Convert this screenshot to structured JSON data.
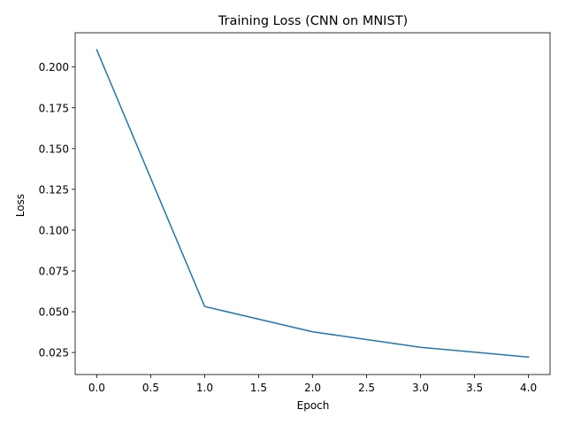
{
  "chart_data": {
    "type": "line",
    "title": "Training Loss (CNN on MNIST)",
    "xlabel": "Epoch",
    "ylabel": "Loss",
    "xlim": [
      -0.2,
      4.2
    ],
    "ylim": [
      0.0115,
      0.221
    ],
    "xticks": [
      0.0,
      0.5,
      1.0,
      1.5,
      2.0,
      2.5,
      3.0,
      3.5,
      4.0
    ],
    "xtick_labels": [
      "0.0",
      "0.5",
      "1.0",
      "1.5",
      "2.0",
      "2.5",
      "3.0",
      "3.5",
      "4.0"
    ],
    "yticks": [
      0.025,
      0.05,
      0.075,
      0.1,
      0.125,
      0.15,
      0.175,
      0.2
    ],
    "ytick_labels": [
      "0.025",
      "0.050",
      "0.075",
      "0.100",
      "0.125",
      "0.150",
      "0.175",
      "0.200"
    ],
    "grid": false,
    "series": [
      {
        "x": [
          0,
          1,
          2,
          3,
          4
        ],
        "values": [
          0.2105,
          0.0532,
          0.0377,
          0.0282,
          0.0222
        ],
        "color": "#1f77b4"
      }
    ]
  }
}
